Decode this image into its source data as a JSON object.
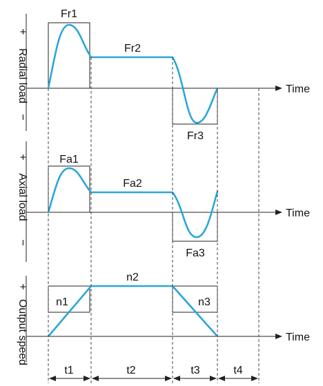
{
  "panels": {
    "radial": {
      "axis_label": "Radial load",
      "plus": "+",
      "minus": "−",
      "time_label": "Time",
      "peak_label": "Fr1",
      "plateau_label": "Fr2",
      "trough_label": "Fr3"
    },
    "axial": {
      "axis_label": "Axial load",
      "plus": "+",
      "minus": "−",
      "time_label": "Time",
      "peak_label": "Fa1",
      "plateau_label": "Fa2",
      "trough_label": "Fa3"
    },
    "speed": {
      "axis_label": "Output speed",
      "plus": "+",
      "time_label": "Time",
      "accel_label": "n1",
      "plateau_label": "n2",
      "decel_label": "n3"
    }
  },
  "intervals": [
    "t1",
    "t2",
    "t3",
    "t4"
  ],
  "colors": {
    "wave": "#2aa6d8",
    "lines": "#222222"
  }
}
